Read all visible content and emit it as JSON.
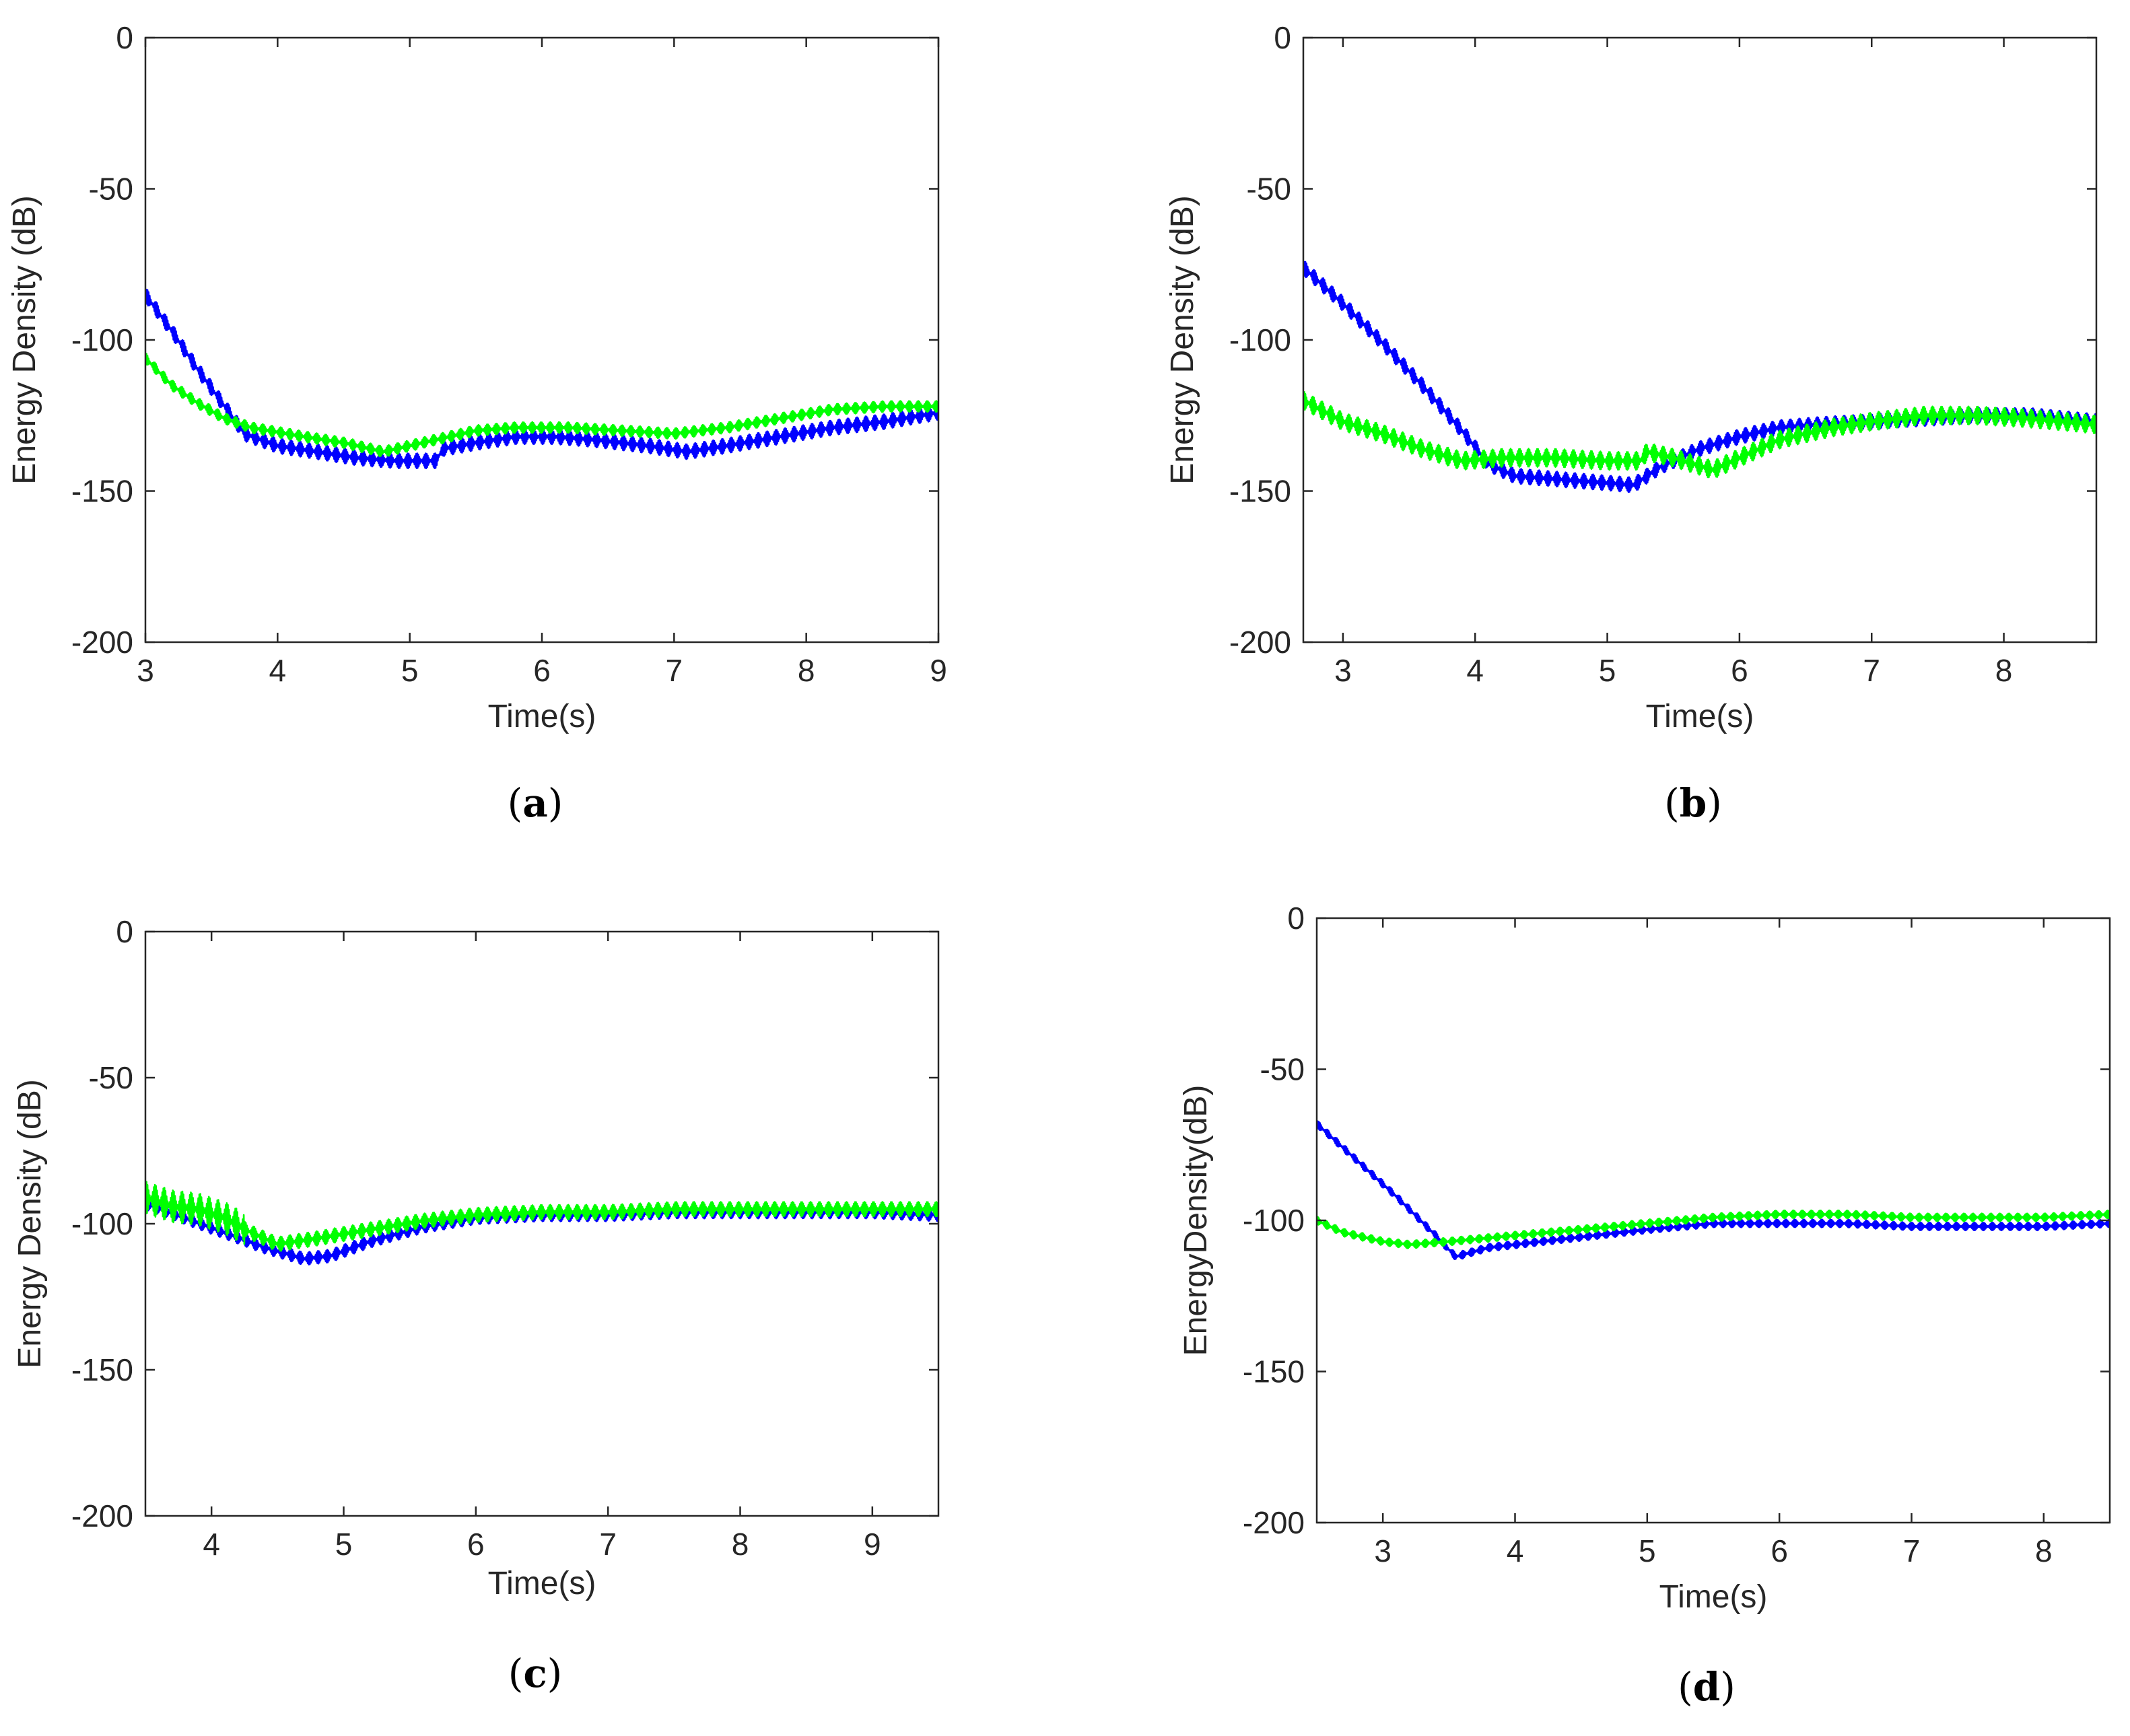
{
  "figure": {
    "colors": {
      "blue": "#0000ff",
      "green": "#00ff00",
      "axes": "#262626"
    }
  },
  "chart_data": [
    {
      "id": "a",
      "type": "line",
      "caption": "a",
      "xlabel": "Time(s)",
      "ylabel": "Energy Density (dB)",
      "xlim": [
        3,
        9
      ],
      "ylim": [
        -200,
        0
      ],
      "xticks": [
        3,
        4,
        5,
        6,
        7,
        8,
        9
      ],
      "yticks": [
        0,
        -50,
        -100,
        -150,
        -200
      ],
      "series": [
        {
          "name": "blue",
          "color": "#0000ff",
          "noise": 2.5,
          "points": [
            [
              3,
              -85
            ],
            [
              3.2,
              -97
            ],
            [
              3.4,
              -110
            ],
            [
              3.6,
              -122
            ],
            [
              3.75,
              -131
            ],
            [
              4,
              -135
            ],
            [
              4.3,
              -137
            ],
            [
              4.6,
              -139
            ],
            [
              4.9,
              -140
            ],
            [
              5.2,
              -140
            ],
            [
              5.25,
              -136
            ],
            [
              5.5,
              -134
            ],
            [
              5.8,
              -132
            ],
            [
              6.1,
              -132
            ],
            [
              6.4,
              -133
            ],
            [
              6.8,
              -135
            ],
            [
              7.1,
              -137
            ],
            [
              7.4,
              -135
            ],
            [
              7.8,
              -132
            ],
            [
              8.2,
              -129
            ],
            [
              8.6,
              -127
            ],
            [
              9,
              -124
            ]
          ]
        },
        {
          "name": "green",
          "color": "#00ff00",
          "noise": 1.8,
          "points": [
            [
              3,
              -106
            ],
            [
              3.2,
              -115
            ],
            [
              3.4,
              -121
            ],
            [
              3.6,
              -126
            ],
            [
              3.8,
              -129
            ],
            [
              4.2,
              -132
            ],
            [
              4.5,
              -134
            ],
            [
              4.8,
              -137
            ],
            [
              5.2,
              -133
            ],
            [
              5.5,
              -130
            ],
            [
              5.8,
              -129
            ],
            [
              6.2,
              -129
            ],
            [
              6.6,
              -130
            ],
            [
              7,
              -131
            ],
            [
              7.4,
              -129
            ],
            [
              7.8,
              -126
            ],
            [
              8.2,
              -123
            ],
            [
              8.6,
              -122
            ],
            [
              9,
              -122
            ]
          ]
        }
      ]
    },
    {
      "id": "b",
      "type": "line",
      "caption": "b",
      "xlabel": "Time(s)",
      "ylabel": "Energy Density (dB)",
      "xlim": [
        2.7,
        8.7
      ],
      "ylim": [
        -200,
        0
      ],
      "xticks": [
        3,
        4,
        5,
        6,
        7,
        8
      ],
      "yticks": [
        0,
        -50,
        -100,
        -150,
        -200
      ],
      "series": [
        {
          "name": "blue",
          "color": "#0000ff",
          "noise": 2.5,
          "points": [
            [
              2.7,
              -76
            ],
            [
              3,
              -88
            ],
            [
              3.3,
              -101
            ],
            [
              3.6,
              -115
            ],
            [
              3.9,
              -130
            ],
            [
              4.1,
              -141
            ],
            [
              4.3,
              -145
            ],
            [
              4.6,
              -146
            ],
            [
              4.9,
              -147
            ],
            [
              5.2,
              -148
            ],
            [
              5.4,
              -142
            ],
            [
              5.7,
              -136
            ],
            [
              6,
              -132
            ],
            [
              6.3,
              -129
            ],
            [
              6.6,
              -128
            ],
            [
              7,
              -127
            ],
            [
              7.4,
              -126
            ],
            [
              7.8,
              -125
            ],
            [
              8.2,
              -125
            ],
            [
              8.7,
              -127
            ]
          ]
        },
        {
          "name": "green",
          "color": "#00ff00",
          "noise": 3,
          "points": [
            [
              2.7,
              -120
            ],
            [
              3,
              -127
            ],
            [
              3.3,
              -131
            ],
            [
              3.6,
              -136
            ],
            [
              3.9,
              -140
            ],
            [
              4.2,
              -139
            ],
            [
              4.6,
              -139
            ],
            [
              5,
              -140
            ],
            [
              5.25,
              -140
            ],
            [
              5.3,
              -137
            ],
            [
              5.5,
              -139
            ],
            [
              5.8,
              -143
            ],
            [
              6,
              -139
            ],
            [
              6.3,
              -133
            ],
            [
              6.7,
              -129
            ],
            [
              7,
              -127
            ],
            [
              7.4,
              -125
            ],
            [
              7.8,
              -125
            ],
            [
              8.2,
              -126
            ],
            [
              8.7,
              -128
            ]
          ]
        }
      ]
    },
    {
      "id": "c",
      "type": "line",
      "caption": "c",
      "xlabel": "Time(s)",
      "ylabel": "Energy Density (dB)",
      "xlim": [
        3.5,
        9.5
      ],
      "ylim": [
        -200,
        0
      ],
      "xticks": [
        4,
        5,
        6,
        7,
        8,
        9
      ],
      "yticks": [
        0,
        -50,
        -100,
        -150,
        -200
      ],
      "series": [
        {
          "name": "blue",
          "color": "#0000ff",
          "noise": 2.2,
          "points": [
            [
              3.5,
              -93
            ],
            [
              3.8,
              -98
            ],
            [
              4.1,
              -103
            ],
            [
              4.4,
              -108
            ],
            [
              4.7,
              -112
            ],
            [
              4.9,
              -111
            ],
            [
              5.2,
              -106
            ],
            [
              5.6,
              -101
            ],
            [
              6,
              -98
            ],
            [
              6.5,
              -97
            ],
            [
              7,
              -97
            ],
            [
              7.5,
              -96
            ],
            [
              8,
              -96
            ],
            [
              8.5,
              -96
            ],
            [
              9,
              -96
            ],
            [
              9.5,
              -97
            ]
          ]
        },
        {
          "name": "green",
          "color": "#00ff00",
          "noise": 2.5,
          "spiky_until": 4.25,
          "points": [
            [
              3.5,
              -91
            ],
            [
              3.7,
              -94
            ],
            [
              3.9,
              -95
            ],
            [
              4.1,
              -98
            ],
            [
              4.3,
              -103
            ],
            [
              4.5,
              -107
            ],
            [
              4.8,
              -105
            ],
            [
              5.2,
              -102
            ],
            [
              5.6,
              -99
            ],
            [
              6,
              -97
            ],
            [
              6.5,
              -96
            ],
            [
              7,
              -96
            ],
            [
              7.5,
              -95
            ],
            [
              8,
              -95
            ],
            [
              8.5,
              -95
            ],
            [
              9,
              -95
            ],
            [
              9.5,
              -95
            ]
          ]
        }
      ]
    },
    {
      "id": "d",
      "type": "line",
      "caption": "d",
      "xlabel": "Time(s)",
      "ylabel": "EnergyDensity(dB)",
      "xlim": [
        2.5,
        8.5
      ],
      "ylim": [
        -200,
        0
      ],
      "xticks": [
        3,
        4,
        5,
        6,
        7,
        8
      ],
      "yticks": [
        0,
        -50,
        -100,
        -150,
        -200
      ],
      "series": [
        {
          "name": "blue",
          "color": "#0000ff",
          "noise": 1.3,
          "points": [
            [
              2.5,
              -68
            ],
            [
              2.8,
              -80
            ],
            [
              3.1,
              -92
            ],
            [
              3.4,
              -105
            ],
            [
              3.55,
              -112
            ],
            [
              3.8,
              -109
            ],
            [
              4.2,
              -107
            ],
            [
              4.6,
              -105
            ],
            [
              5,
              -103
            ],
            [
              5.5,
              -101
            ],
            [
              6,
              -101
            ],
            [
              6.5,
              -101
            ],
            [
              7,
              -102
            ],
            [
              7.5,
              -102
            ],
            [
              8,
              -102
            ],
            [
              8.5,
              -101
            ]
          ]
        },
        {
          "name": "green",
          "color": "#00ff00",
          "noise": 1.3,
          "points": [
            [
              2.5,
              -100
            ],
            [
              2.7,
              -104
            ],
            [
              3,
              -107
            ],
            [
              3.2,
              -108
            ],
            [
              3.5,
              -107
            ],
            [
              4,
              -105
            ],
            [
              4.5,
              -103
            ],
            [
              5,
              -101
            ],
            [
              5.5,
              -99
            ],
            [
              6,
              -98
            ],
            [
              6.5,
              -98
            ],
            [
              7,
              -99
            ],
            [
              7.5,
              -99
            ],
            [
              8,
              -99
            ],
            [
              8.5,
              -98
            ]
          ]
        }
      ]
    }
  ]
}
